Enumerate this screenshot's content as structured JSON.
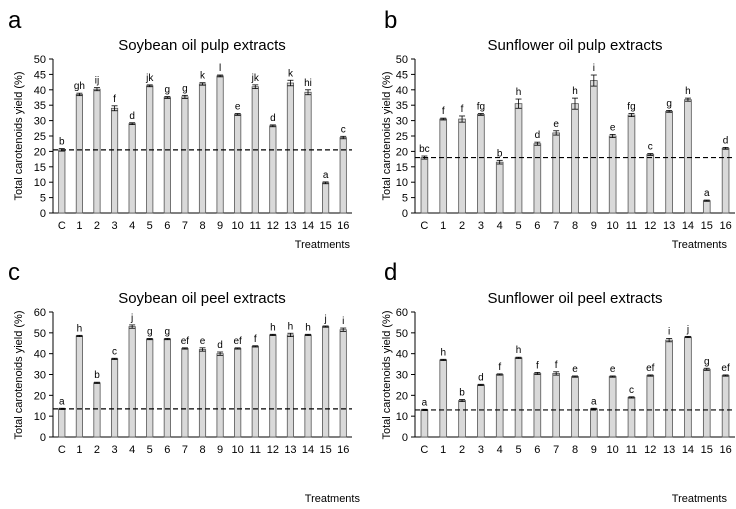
{
  "chart_data": [
    {
      "panel_letter": "a",
      "type": "bar",
      "title": "Soybean oil pulp extracts",
      "xlabel": "Treatments",
      "ylabel": "Total carotenoids yield (%)",
      "ylim": [
        0,
        50
      ],
      "yticks": [
        0,
        5,
        10,
        15,
        20,
        25,
        30,
        35,
        40,
        45,
        50
      ],
      "categories": [
        "C",
        "1",
        "2",
        "3",
        "4",
        "5",
        "6",
        "7",
        "8",
        "9",
        "10",
        "11",
        "12",
        "13",
        "14",
        "15",
        "16"
      ],
      "values": [
        20.5,
        38.5,
        40.2,
        34.0,
        29.0,
        41.3,
        37.5,
        37.7,
        41.9,
        44.5,
        32.0,
        41.0,
        28.3,
        42.2,
        39.2,
        9.8,
        24.5
      ],
      "errors": [
        0.4,
        0.4,
        0.5,
        0.8,
        0.3,
        0.3,
        0.3,
        0.5,
        0.4,
        0.3,
        0.3,
        0.6,
        0.3,
        0.9,
        0.8,
        0.3,
        0.4
      ],
      "letters": [
        "b",
        "gh",
        "ij",
        "f",
        "d",
        "jk",
        "g",
        "g",
        "k",
        "l",
        "e",
        "jk",
        "d",
        "k",
        "hi",
        "a",
        "c"
      ],
      "reference_line": 20.5,
      "grid": false,
      "legend": "none",
      "bar_color": "#d9d9d9"
    },
    {
      "panel_letter": "b",
      "type": "bar",
      "title": "Sunflower oil pulp extracts",
      "xlabel": "Treatments",
      "ylabel": "Total carotenoids yield (%)",
      "ylim": [
        0,
        50
      ],
      "yticks": [
        0,
        5,
        10,
        15,
        20,
        25,
        30,
        35,
        40,
        45,
        50
      ],
      "categories": [
        "C",
        "1",
        "2",
        "3",
        "4",
        "5",
        "6",
        "7",
        "8",
        "9",
        "10",
        "11",
        "12",
        "13",
        "14",
        "15",
        "16"
      ],
      "values": [
        18.0,
        30.5,
        30.5,
        32.0,
        16.5,
        35.5,
        22.5,
        26.0,
        35.5,
        43.0,
        25.0,
        31.8,
        19.0,
        33.0,
        36.8,
        4.0,
        21.0
      ],
      "errors": [
        0.5,
        0.3,
        1.0,
        0.3,
        0.6,
        1.5,
        0.5,
        0.7,
        1.8,
        1.8,
        0.5,
        0.5,
        0.3,
        0.3,
        0.5,
        0.2,
        0.3
      ],
      "letters": [
        "bc",
        "f",
        "f",
        "fg",
        "b",
        "h",
        "d",
        "e",
        "h",
        "i",
        "e",
        "fg",
        "c",
        "g",
        "h",
        "a",
        "d"
      ],
      "reference_line": 18.0,
      "grid": false,
      "legend": "none",
      "bar_color": "#d9d9d9"
    },
    {
      "panel_letter": "c",
      "type": "bar",
      "title": "Soybean oil peel extracts",
      "xlabel": "Treatments",
      "ylabel": "Total carotenoids yield (%)",
      "ylim": [
        0,
        60
      ],
      "yticks": [
        0,
        10,
        20,
        30,
        40,
        50,
        60
      ],
      "categories": [
        "C",
        "1",
        "2",
        "3",
        "4",
        "5",
        "6",
        "7",
        "8",
        "9",
        "10",
        "11",
        "12",
        "13",
        "14",
        "15",
        "16"
      ],
      "values": [
        13.5,
        48.5,
        26.0,
        37.5,
        53.0,
        47.0,
        47.0,
        42.5,
        42.0,
        40.0,
        42.5,
        43.5,
        49.0,
        49.0,
        49.0,
        53.0,
        51.5
      ],
      "errors": [
        0.3,
        0.3,
        0.3,
        0.3,
        0.8,
        0.3,
        0.3,
        0.3,
        0.8,
        0.8,
        0.3,
        0.3,
        0.3,
        0.8,
        0.3,
        0.3,
        0.8
      ],
      "letters": [
        "a",
        "h",
        "b",
        "c",
        "j",
        "g",
        "g",
        "ef",
        "e",
        "d",
        "ef",
        "f",
        "h",
        "h",
        "h",
        "j",
        "i"
      ],
      "reference_line": 13.5,
      "grid": false,
      "legend": "none",
      "bar_color": "#d9d9d9"
    },
    {
      "panel_letter": "d",
      "type": "bar",
      "title": "Sunflower oil peel extracts",
      "xlabel": "Treatments",
      "ylabel": "Total carotenoids yield (%)",
      "ylim": [
        0,
        60
      ],
      "yticks": [
        0,
        10,
        20,
        30,
        40,
        50,
        60
      ],
      "categories": [
        "C",
        "1",
        "2",
        "3",
        "4",
        "5",
        "6",
        "7",
        "8",
        "9",
        "10",
        "11",
        "12",
        "13",
        "14",
        "15",
        "16"
      ],
      "values": [
        13.0,
        37.0,
        17.5,
        25.0,
        30.0,
        38.0,
        30.5,
        30.5,
        29.0,
        13.5,
        29.0,
        19.0,
        29.5,
        46.5,
        48.0,
        32.5,
        29.5
      ],
      "errors": [
        0.3,
        0.3,
        0.5,
        0.3,
        0.3,
        0.3,
        0.5,
        0.8,
        0.3,
        0.3,
        0.3,
        0.3,
        0.3,
        0.8,
        0.3,
        0.5,
        0.3
      ],
      "letters": [
        "a",
        "h",
        "b",
        "d",
        "f",
        "h",
        "f",
        "f",
        "e",
        "a",
        "e",
        "c",
        "ef",
        "i",
        "j",
        "g",
        "ef"
      ],
      "reference_line": 13.0,
      "grid": false,
      "legend": "none",
      "bar_color": "#d9d9d9"
    }
  ]
}
